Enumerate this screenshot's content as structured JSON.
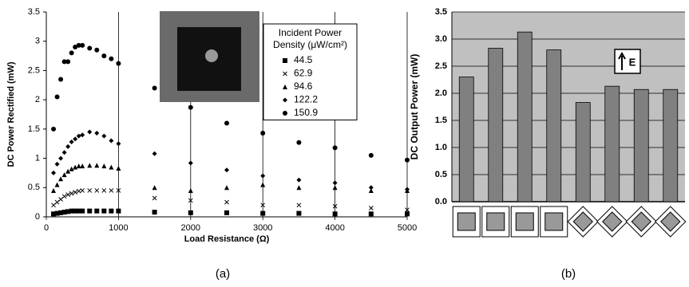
{
  "chart_data": [
    {
      "type": "scatter",
      "xlabel": "Load Resistance (Ω)",
      "ylabel": "DC Power Rectified (mW)",
      "caption": "(a)",
      "legend_title": [
        "Incident Power",
        "Density (μW/cm²)"
      ],
      "x": [
        100,
        150,
        200,
        250,
        300,
        350,
        400,
        450,
        500,
        600,
        700,
        800,
        900,
        1000,
        1500,
        2000,
        2500,
        3000,
        3500,
        4000,
        4500,
        5000
      ],
      "series": [
        {
          "name": "44.5",
          "marker": "square",
          "color": "#000000",
          "values": [
            0.05,
            0.06,
            0.07,
            0.08,
            0.09,
            0.1,
            0.1,
            0.1,
            0.1,
            0.1,
            0.1,
            0.1,
            0.1,
            0.1,
            0.08,
            0.07,
            0.07,
            0.06,
            0.06,
            0.05,
            0.05,
            0.05
          ]
        },
        {
          "name": "62.9",
          "marker": "x",
          "color": "#000000",
          "values": [
            0.2,
            0.25,
            0.3,
            0.35,
            0.38,
            0.4,
            0.42,
            0.44,
            0.45,
            0.45,
            0.45,
            0.45,
            0.45,
            0.45,
            0.32,
            0.28,
            0.25,
            0.2,
            0.2,
            0.18,
            0.15,
            0.12
          ]
        },
        {
          "name": "94.6",
          "marker": "triangle",
          "color": "#000000",
          "values": [
            0.45,
            0.55,
            0.65,
            0.72,
            0.78,
            0.82,
            0.85,
            0.87,
            0.87,
            0.88,
            0.88,
            0.87,
            0.85,
            0.83,
            0.5,
            0.45,
            0.5,
            0.55,
            0.5,
            0.5,
            0.45,
            0.45
          ]
        },
        {
          "name": "122.2",
          "marker": "diamond",
          "color": "#000000",
          "values": [
            0.75,
            0.9,
            1.0,
            1.1,
            1.2,
            1.28,
            1.33,
            1.38,
            1.4,
            1.45,
            1.43,
            1.38,
            1.3,
            1.25,
            1.08,
            0.92,
            0.8,
            0.7,
            0.63,
            0.58,
            0.5,
            0.47
          ]
        },
        {
          "name": "150.9",
          "marker": "circle",
          "color": "#000000",
          "values": [
            1.5,
            2.05,
            2.35,
            2.65,
            2.65,
            2.8,
            2.9,
            2.93,
            2.93,
            2.88,
            2.85,
            2.75,
            2.7,
            2.62,
            2.2,
            1.87,
            1.6,
            1.43,
            1.27,
            1.18,
            1.05,
            0.97
          ]
        }
      ],
      "xlim": [
        0,
        5000
      ],
      "xticks": [
        0,
        1000,
        2000,
        3000,
        4000,
        5000
      ],
      "ylim": [
        0,
        3.5
      ],
      "yticks": [
        0,
        0.5,
        1,
        1.5,
        2,
        2.5,
        3,
        3.5
      ]
    },
    {
      "type": "bar",
      "ylabel": "DC Output Power (mW)",
      "caption": "(b)",
      "annotation": "E",
      "categories": [
        null,
        null,
        null,
        null,
        null,
        null,
        null,
        null
      ],
      "values": [
        2.3,
        2.83,
        3.13,
        2.8,
        1.83,
        2.13,
        2.07,
        2.07
      ],
      "color": "#808080",
      "background": "#c0c0c0",
      "grid": true,
      "ylim": [
        0,
        3.5
      ],
      "yticks": [
        {
          "value": 0,
          "label": "0.0"
        },
        {
          "value": 0.5,
          "label": "0.5"
        },
        {
          "value": 1,
          "label": "1.0"
        },
        {
          "value": 1.5,
          "label": "1.5"
        },
        {
          "value": 2,
          "label": "2.0"
        },
        {
          "value": 2.5,
          "label": "2.5"
        },
        {
          "value": 3,
          "label": "3.0"
        },
        {
          "value": 3.5,
          "label": "3.5"
        }
      ]
    }
  ]
}
